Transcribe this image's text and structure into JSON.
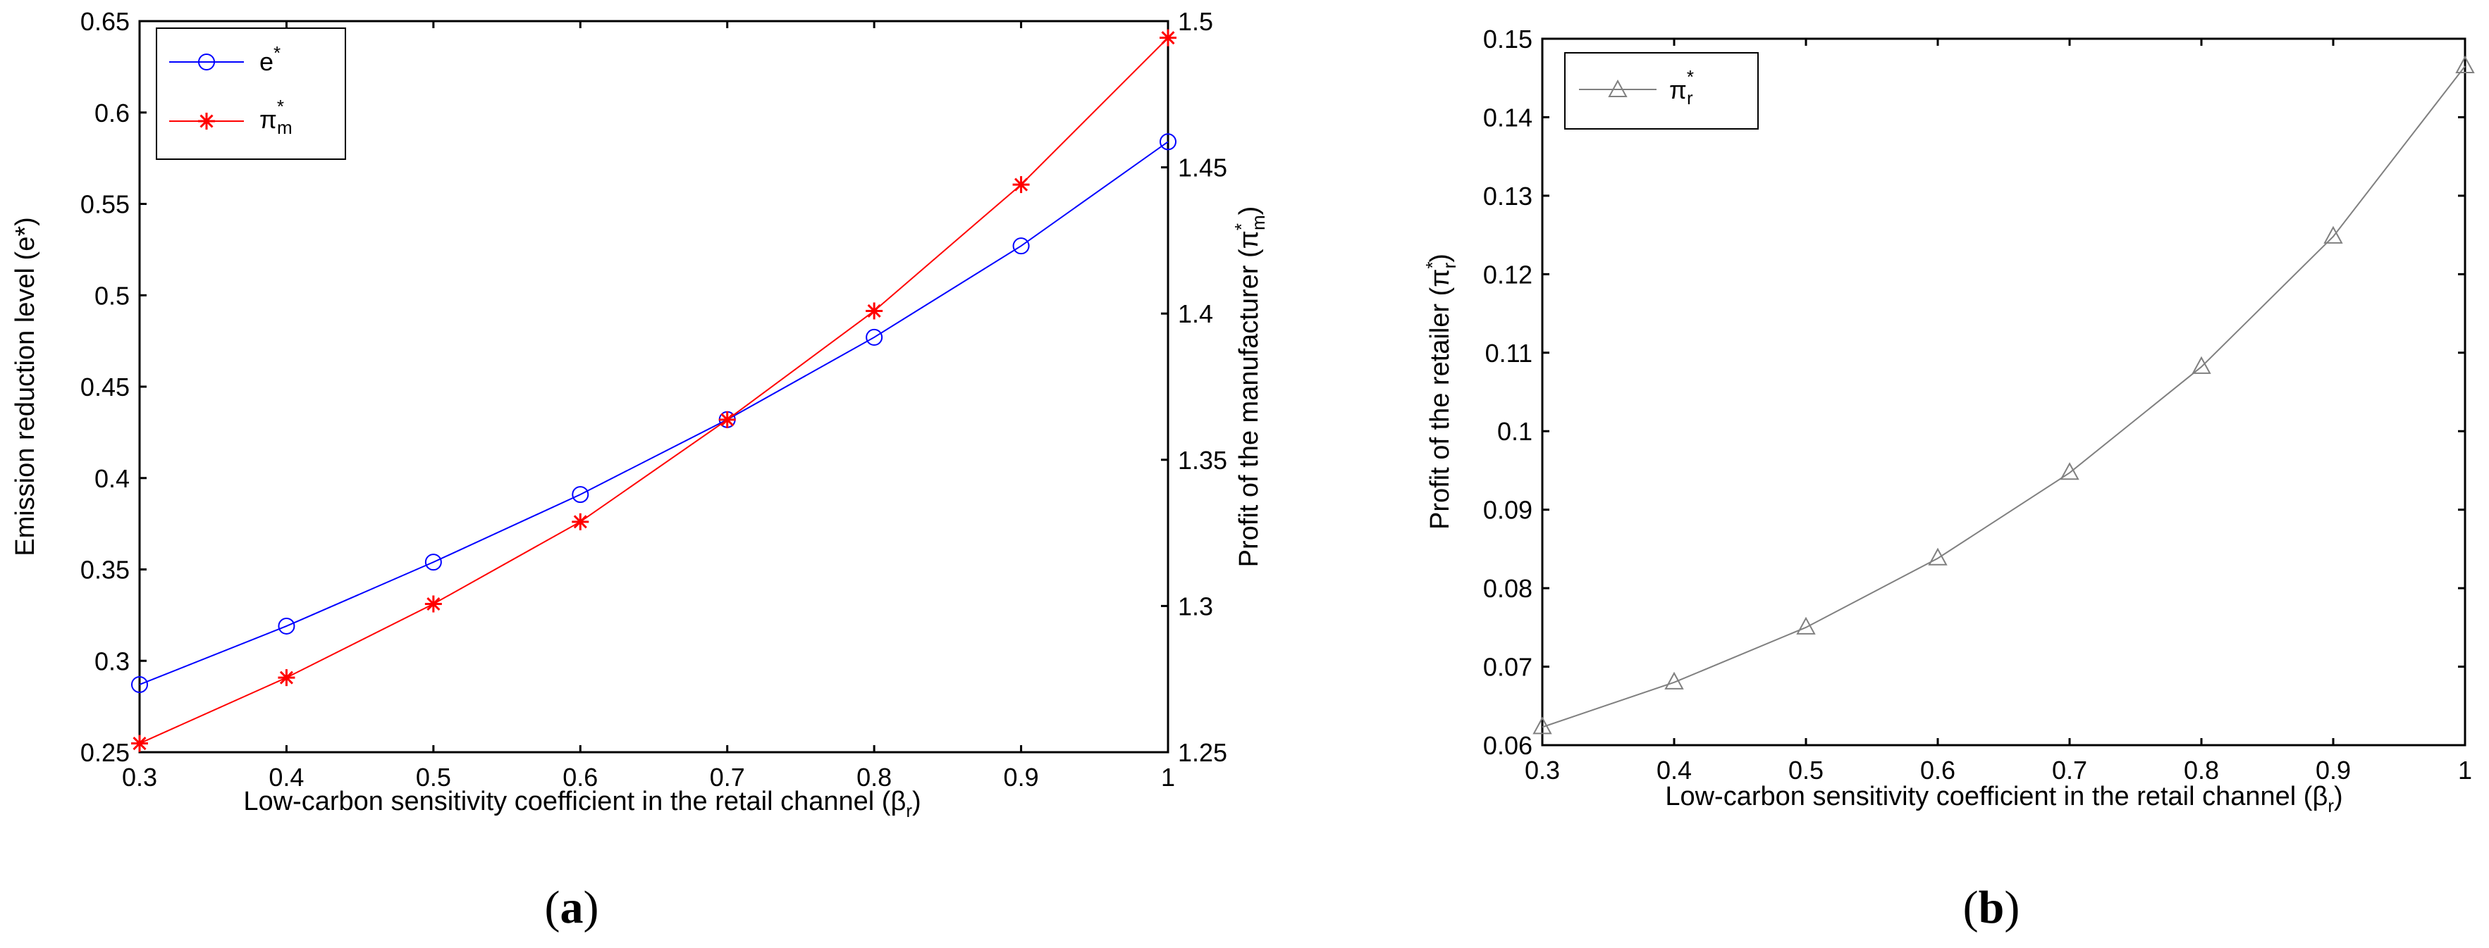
{
  "chart_data": [
    {
      "type": "line",
      "panel": "a",
      "caption": {
        "open": "(",
        "letter": "a",
        "close": ")"
      },
      "x": [
        0.3,
        0.4,
        0.5,
        0.6,
        0.7,
        0.8,
        0.9,
        1.0
      ],
      "xlim": [
        0.3,
        1
      ],
      "xticks": [
        "0.3",
        "0.4",
        "0.5",
        "0.6",
        "0.7",
        "0.8",
        "0.9",
        "1"
      ],
      "xlabel": {
        "main": "Low-carbon sensitivity coefficient in the retail channel (β",
        "sub": "r",
        "close": ")"
      },
      "ylabel_left": "Emission reduction level (e*)",
      "ylim_left": [
        0.25,
        0.65
      ],
      "yticks_left": [
        "0.25",
        "0.3",
        "0.35",
        "0.4",
        "0.45",
        "0.5",
        "0.55",
        "0.6",
        "0.65"
      ],
      "ylabel_right": {
        "main": "Profit of the manufacturer (π",
        "sup": "*",
        "sub": "m",
        "close": ")"
      },
      "ylim_right": [
        1.25,
        1.5
      ],
      "yticks_right": [
        "1.25",
        "1.3",
        "1.35",
        "1.4",
        "1.45",
        "1.5"
      ],
      "legend_position": "top-left",
      "series": [
        {
          "name": "e",
          "name_sup": "*",
          "axis": "left",
          "color": "#0000ff",
          "marker": "circle",
          "values": [
            0.287,
            0.319,
            0.354,
            0.391,
            0.432,
            0.477,
            0.527,
            0.584
          ]
        },
        {
          "name": "π",
          "name_sup": "*",
          "name_sub": "m",
          "axis": "right",
          "color": "#ff0000",
          "marker": "star",
          "values": [
            1.253,
            1.2755,
            1.3007,
            1.3288,
            1.3637,
            1.4009,
            1.4441,
            1.4943
          ]
        }
      ]
    },
    {
      "type": "line",
      "panel": "b",
      "caption": {
        "open": "(",
        "letter": "b",
        "close": ")"
      },
      "x": [
        0.3,
        0.4,
        0.5,
        0.6,
        0.7,
        0.8,
        0.9,
        1.0
      ],
      "xlim": [
        0.3,
        1
      ],
      "xticks": [
        "0.3",
        "0.4",
        "0.5",
        "0.6",
        "0.7",
        "0.8",
        "0.9",
        "1"
      ],
      "xlabel": {
        "main": "Low-carbon sensitivity coefficient in the retail channel (β",
        "sub": "r",
        "close": ")"
      },
      "ylabel": {
        "main": "Profit of the retailer (π",
        "sup": "*",
        "sub": "r",
        "close": ")"
      },
      "ylim": [
        0.06,
        0.15
      ],
      "yticks": [
        "0.06",
        "0.07",
        "0.08",
        "0.09",
        "0.1",
        "0.11",
        "0.12",
        "0.13",
        "0.14",
        "0.15"
      ],
      "legend_position": "top-left",
      "series": [
        {
          "name": "π",
          "name_sup": "*",
          "name_sub": "r",
          "color": "#808080",
          "marker": "triangle",
          "values": [
            0.0623,
            0.068,
            0.075,
            0.0838,
            0.0947,
            0.1082,
            0.1248,
            0.1465
          ]
        }
      ]
    }
  ]
}
